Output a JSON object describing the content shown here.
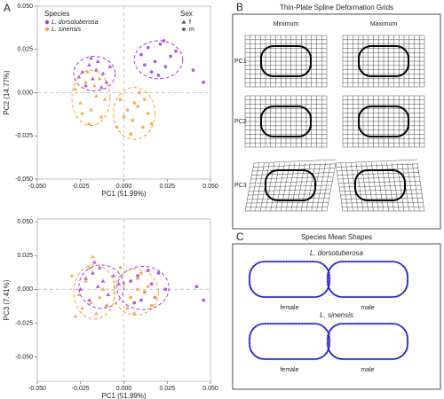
{
  "panels": {
    "a": "A",
    "b": "B",
    "c": "C",
    "grids": {
      "title": "Thin-Plate Spline Deformation Grids",
      "columns": [
        "Minimum",
        "Maximum"
      ],
      "rows": [
        "PC1",
        "PC2",
        "PC3"
      ]
    },
    "shapes": {
      "title": "Species Mean Shapes",
      "groups": [
        "L. dorsotuberosa",
        "L. sinensis"
      ],
      "sexes": [
        "female",
        "male"
      ]
    }
  },
  "legend": {
    "title": "Species",
    "entries": [
      {
        "label": "L. dorsotuberosa",
        "color": "#a63fd6"
      },
      {
        "label": "L. sinensis",
        "color": "#f5a33a"
      }
    ],
    "sex_title": "Sex",
    "sex_entries": [
      {
        "label": "f",
        "marker": "triangle"
      },
      {
        "label": "m",
        "marker": "circle"
      }
    ]
  },
  "chart_data": [
    {
      "type": "scatter",
      "xlabel": "PC1 (51.99%)",
      "ylabel": "PC2 (14.77%)",
      "xlim": [
        -0.05,
        0.05
      ],
      "ylim": [
        -0.05,
        0.05
      ],
      "xticks": [
        {
          "value": -0.05,
          "label": "-0.050"
        },
        -0.025,
        {
          "value": 0,
          "label": "0.000"
        },
        0.025,
        {
          "value": 0.05,
          "label": "0.050"
        }
      ],
      "yticks": [
        {
          "value": -0.05,
          "label": "-0.050"
        },
        -0.025,
        {
          "value": 0,
          "label": "0.000"
        },
        0.025,
        {
          "value": 0.05,
          "label": "0.050"
        }
      ],
      "series": [
        {
          "species": 0,
          "sex": 0,
          "x": [
            -0.024,
            -0.02,
            -0.018,
            -0.015,
            -0.012,
            -0.01,
            -0.022,
            -0.016,
            -0.008,
            -0.019,
            -0.013,
            -0.026
          ],
          "y": [
            0.012,
            0.016,
            0.008,
            0.018,
            0.011,
            0.006,
            0.004,
            0.013,
            0.015,
            0.02,
            0.003,
            0.009
          ]
        },
        {
          "species": 0,
          "sex": 1,
          "x": [
            0.01,
            0.014,
            0.018,
            0.021,
            0.024,
            0.027,
            0.016,
            0.02,
            0.012,
            0.03,
            0.023,
            0.046,
            0.04
          ],
          "y": [
            0.022,
            0.026,
            0.018,
            0.028,
            0.015,
            0.021,
            0.012,
            0.01,
            0.016,
            0.024,
            0.03,
            0.006,
            0.013
          ]
        },
        {
          "species": 1,
          "sex": 0,
          "x": [
            -0.028,
            -0.025,
            -0.022,
            -0.019,
            -0.016,
            -0.013,
            -0.021,
            -0.017,
            -0.024,
            -0.014,
            -0.02,
            -0.011
          ],
          "y": [
            0.002,
            -0.006,
            0.006,
            -0.01,
            -0.002,
            -0.014,
            0.012,
            0.004,
            -0.012,
            0.008,
            -0.018,
            -0.004
          ]
        },
        {
          "species": 1,
          "sex": 1,
          "x": [
            -0.002,
            0.002,
            0.005,
            0.008,
            0.011,
            0.014,
            0.004,
            0.009,
            0,
            0.012,
            0.006,
            0.016,
            -0.004
          ],
          "y": [
            -0.004,
            -0.01,
            -0.016,
            -0.008,
            -0.02,
            -0.012,
            -0.024,
            0,
            -0.014,
            -0.004,
            -0.006,
            -0.018,
            -0.02
          ]
        }
      ],
      "ellipses": [
        {
          "species": 0,
          "cx": -0.017,
          "cy": 0.011,
          "rx": 0.012,
          "ry": 0.01
        },
        {
          "species": 0,
          "cx": 0.02,
          "cy": 0.019,
          "rx": 0.014,
          "ry": 0.011
        },
        {
          "species": 1,
          "cx": -0.019,
          "cy": -0.003,
          "rx": 0.011,
          "ry": 0.016
        },
        {
          "species": 1,
          "cx": 0.006,
          "cy": -0.012,
          "rx": 0.012,
          "ry": 0.015
        }
      ]
    },
    {
      "type": "scatter",
      "xlabel": "PC1 (51.99%)",
      "ylabel": "PC3 (7.41%)",
      "xlim": [
        -0.05,
        0.05
      ],
      "ylim": [
        -0.068,
        0.052
      ],
      "xticks": [
        {
          "value": -0.05,
          "label": "-0.050"
        },
        -0.025,
        {
          "value": 0,
          "label": "0.000"
        },
        0.025,
        {
          "value": 0.05,
          "label": "0.050"
        }
      ],
      "yticks": [
        {
          "value": -0.05,
          "label": "-0.050"
        },
        -0.025,
        {
          "value": 0,
          "label": "0.000"
        },
        0.025,
        {
          "value": 0.05,
          "label": "0.050"
        }
      ],
      "series": [
        {
          "species": 0,
          "sex": 0,
          "x": [
            -0.022,
            -0.018,
            -0.015,
            -0.012,
            -0.009,
            -0.02,
            -0.014,
            -0.006,
            -0.025,
            -0.01,
            -0.017,
            -0.003
          ],
          "y": [
            0.008,
            0.012,
            0.002,
            0.006,
            -0.004,
            -0.008,
            0.016,
            0.01,
            0,
            -0.012,
            0.02,
            0.004
          ]
        },
        {
          "species": 0,
          "sex": 1,
          "x": [
            0.004,
            0.008,
            0.012,
            0.016,
            0.02,
            0.024,
            0.01,
            0.014,
            0.006,
            0.018,
            0.046,
            0.042
          ],
          "y": [
            0.006,
            0.01,
            -0.002,
            0.004,
            0.012,
            0,
            -0.008,
            0.014,
            -0.01,
            -0.006,
            -0.008,
            0.002
          ]
        },
        {
          "species": 1,
          "sex": 0,
          "x": [
            -0.03,
            -0.026,
            -0.022,
            -0.019,
            -0.016,
            -0.012,
            -0.024,
            -0.02,
            -0.014,
            -0.028,
            -0.018,
            -0.01
          ],
          "y": [
            0.01,
            -0.004,
            0.006,
            -0.01,
            -0.018,
            0,
            -0.014,
            0.016,
            -0.006,
            -0.02,
            0.024,
            -0.012
          ]
        },
        {
          "species": 1,
          "sex": 1,
          "x": [
            0,
            0.004,
            0.008,
            0.012,
            0.016,
            0.002,
            0.01,
            0.006,
            0.014,
            -0.002,
            0.018,
            0.008
          ],
          "y": [
            0.004,
            -0.006,
            0.008,
            -0.002,
            -0.012,
            -0.014,
            0.012,
            -0.018,
            0.002,
            0.016,
            -0.006,
            0
          ]
        }
      ],
      "ellipses": [
        {
          "species": 0,
          "cx": -0.013,
          "cy": 0.002,
          "rx": 0.013,
          "ry": 0.016
        },
        {
          "species": 0,
          "cx": 0.011,
          "cy": 0.001,
          "rx": 0.015,
          "ry": 0.016
        },
        {
          "species": 1,
          "cx": -0.017,
          "cy": -0.002,
          "rx": 0.012,
          "ry": 0.02
        },
        {
          "species": 1,
          "cx": 0.007,
          "cy": -0.002,
          "rx": 0.013,
          "ry": 0.017
        }
      ]
    }
  ]
}
